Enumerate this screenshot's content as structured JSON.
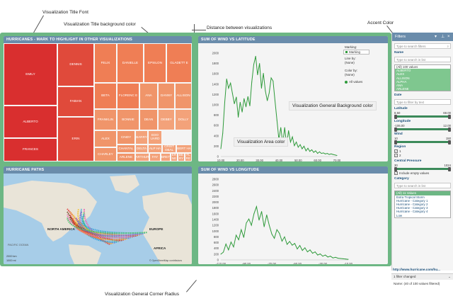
{
  "annotations": {
    "title_font": "Visualization Title Font",
    "title_bg": "Visualization Title background color",
    "distance": "Distance between visualizations",
    "accent": "Accent Color",
    "general_bg": "Visualization General Background color",
    "area_color": "Visualization Area color",
    "corner_radius": "Visualization General Corner Radius"
  },
  "colors": {
    "accent": "#6db784",
    "title_bg": "#6a8cab",
    "line": "#2e9a3a"
  },
  "treemap": {
    "title": "HURRICANES - MARK TO HIGHLIGHT IN OTHER VISUALIZATIONS",
    "cells": [
      {
        "label": "EMILY"
      },
      {
        "label": "ALBERTO"
      },
      {
        "label": "FRANCES"
      },
      {
        "label": "DENNIS"
      },
      {
        "label": "FABIAN"
      },
      {
        "label": "ERIN"
      },
      {
        "label": "FELIX"
      },
      {
        "label": "DANIELLE"
      },
      {
        "label": "EPSILON"
      },
      {
        "label": "GLADETT E"
      },
      {
        "label": "BETA"
      },
      {
        "label": "FLORENC E"
      },
      {
        "label": "ANA"
      },
      {
        "label": "DANNY"
      },
      {
        "label": "ALLISON"
      },
      {
        "label": "FRANKLIN"
      },
      {
        "label": "BONNIE"
      },
      {
        "label": "DEAN"
      },
      {
        "label": "DEBBY"
      },
      {
        "label": "DOLLY"
      },
      {
        "label": "CINDY"
      },
      {
        "label": "BARRY"
      },
      {
        "label": "EDO UARD"
      },
      {
        "label": "ALEX"
      },
      {
        "label": "CHANTAL"
      },
      {
        "label": "DELTA"
      },
      {
        "label": "ALP HA"
      },
      {
        "label": "CRIST OBAL"
      },
      {
        "label": "BERT HA"
      },
      {
        "label": "CHARLEY"
      },
      {
        "label": "ARLENE"
      },
      {
        "label": "ARTHUR"
      },
      {
        "label": "FAY"
      },
      {
        "label": "BRET"
      },
      {
        "label": "ER NE"
      },
      {
        "label": "BE RY"
      },
      {
        "label": "FL RE"
      }
    ]
  },
  "map": {
    "title": "HURRICANE PATHS",
    "labels": {
      "na": "NORTH AMERICA",
      "europe": "EUROPE",
      "africa": "AFRICA",
      "pacific": "PACIFIC OCEAN"
    },
    "attribution": "© OpenStreetMap contributors",
    "scale1": "2000 km",
    "scale2": "1000 mi"
  },
  "lat_chart": {
    "title": "SUM OF WIND VS LATITUDE",
    "controls": {
      "marking_label": "Marking:",
      "marking_value": "Marking",
      "line_label": "Line by:",
      "line_value": "(None)",
      "color_label": "Color by:",
      "color_value": "(None)",
      "all_values": "All values"
    }
  },
  "lon_chart": {
    "title": "SUM OF WIND VS LONGITUDE"
  },
  "chart_data": [
    {
      "type": "line",
      "x": [
        10,
        11,
        12,
        13,
        14,
        15,
        16,
        17,
        18,
        19,
        20,
        21,
        22,
        23,
        24,
        25,
        26,
        27,
        28,
        29,
        30,
        31,
        32,
        33,
        34,
        35,
        36,
        37,
        38,
        39,
        40,
        41,
        42,
        43,
        44,
        45,
        46,
        47,
        48,
        49,
        50,
        51,
        52,
        53,
        54,
        55,
        56,
        57,
        58,
        59,
        60,
        61,
        62,
        63,
        64,
        65,
        66,
        67,
        68,
        69,
        70
      ],
      "y": [
        150,
        450,
        1050,
        1500,
        1320,
        1420,
        1220,
        1020,
        1150,
        760,
        1050,
        860,
        1120,
        960,
        1160,
        980,
        1440,
        1780,
        1940,
        1580,
        1800,
        1320,
        1610,
        1270,
        1080,
        1230,
        1520,
        1460,
        1080,
        700,
        330,
        560,
        250,
        560,
        230,
        500,
        280,
        380,
        210,
        280,
        180,
        230,
        150,
        200,
        110,
        160,
        100,
        130,
        80,
        110,
        60,
        90,
        60,
        70,
        50,
        60,
        40,
        50,
        40,
        30,
        20
      ],
      "xticks": [
        "10.00",
        "20.00",
        "30.00",
        "40.00",
        "50.00",
        "60.00",
        "70.00"
      ],
      "yticks": [
        "0",
        "200",
        "400",
        "600",
        "800",
        "1000",
        "1200",
        "1400",
        "1600",
        "1800",
        "2000"
      ],
      "xlim": [
        10,
        70
      ],
      "ylim": [
        0,
        2000
      ]
    },
    {
      "type": "line",
      "x": [
        -110,
        -108,
        -106,
        -104,
        -102,
        -100,
        -98,
        -96,
        -94,
        -92,
        -90,
        -88,
        -86,
        -84,
        -82,
        -80,
        -78,
        -76,
        -74,
        -72,
        -70,
        -68,
        -66,
        -64,
        -62,
        -60,
        -58,
        -56,
        -54,
        -52,
        -50,
        -48,
        -46,
        -44,
        -42,
        -40,
        -38,
        -36,
        -34,
        -32,
        -30,
        -28,
        -26,
        -24,
        -22,
        -20,
        -18,
        -16,
        -14,
        -12,
        -10
      ],
      "y": [
        200,
        270,
        550,
        350,
        620,
        450,
        860,
        700,
        1050,
        780,
        1280,
        1420,
        1200,
        1600,
        1850,
        1380,
        1680,
        1150,
        1560,
        1200,
        900,
        750,
        1050,
        920,
        650,
        800,
        540,
        640,
        510,
        570,
        380,
        500,
        330,
        420,
        280,
        350,
        230,
        280,
        170,
        210,
        130,
        170,
        100,
        130,
        70,
        90,
        60,
        50,
        40,
        30,
        20
      ],
      "xticks": [
        "-110.00",
        "-90.00",
        "-70.00",
        "-50.00",
        "-30.00",
        "-10.00"
      ],
      "yticks": [
        "0",
        "200",
        "400",
        "600",
        "800",
        "1000",
        "1200",
        "1400",
        "1600",
        "1800",
        "2000",
        "2200",
        "2400",
        "2600",
        "2800"
      ],
      "xlim": [
        -110,
        -10
      ],
      "ylim": [
        0,
        2800
      ]
    }
  ],
  "filters": {
    "title": "Filters",
    "search_placeholder": "Type to search filters",
    "name_label": "Name",
    "name_search": "Type to search in list",
    "name_items": [
      "(All) 100 values",
      "ALBERTO",
      "ALEX",
      "ALLISON",
      "ALPHA",
      "ANA",
      "ARLENE"
    ],
    "date_label": "Date",
    "date_search": "Type to filter by text",
    "lat_label": "Latitude",
    "lat_min": "8.50",
    "lat_max": "69.00",
    "lon_label": "Longitude",
    "lon_min": "-106.00",
    "lon_max": "12.00",
    "wind_label": "Wind",
    "wind_min": "10",
    "wind_max": "150",
    "region_label": "Region",
    "region_items": [
      "1",
      "2"
    ],
    "pressure_label": "Central Pressure",
    "pressure_min": "30",
    "pressure_max": "1024",
    "include_empty": "Include empty values",
    "category_label": "Category",
    "category_search": "Type to search in list",
    "category_items": [
      "(All) 11 Values",
      "Extra Tropical Storm",
      "Hurricane - Category 1",
      "Hurricane - Category 2",
      "Hurricane - Category 3",
      "Hurricane - Category 4",
      "Low"
    ],
    "url": "http://www.hurricane.com/hu...",
    "changed": "1 filter changed",
    "status": "Name: (40 of 100 values filtered)"
  }
}
